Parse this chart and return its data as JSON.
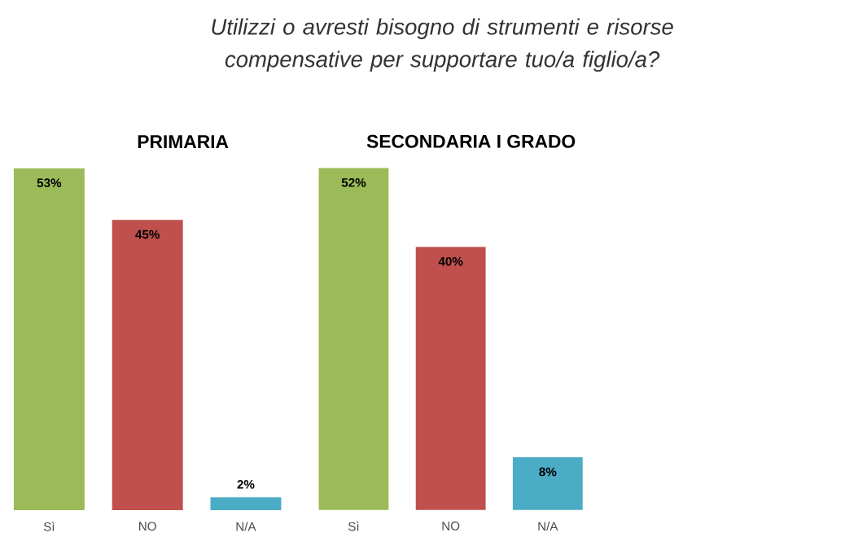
{
  "chart_data": [
    {
      "type": "bar",
      "title": "PRIMARIA",
      "annotations": [
        "*Utilizzi o avresti bisogno di strumenti e risorse compensative per supportare tuo/a figlio/a?*"
      ],
      "categories": [
        "Sì",
        "NO",
        "N/A"
      ],
      "values": [
        53,
        45,
        2
      ],
      "value_labels": [
        "53%",
        "45%",
        "2%"
      ],
      "colors": [
        "#9bbb59",
        "#c0504d",
        "#4bacc6"
      ],
      "tick_labels": "x"
    },
    {
      "type": "bar",
      "title": "SECONDARIA I GRADO",
      "categories": [
        "Sì",
        "NO",
        "N/A"
      ],
      "values": [
        52,
        40,
        8
      ],
      "value_labels": [
        "52%",
        "40%",
        "8%"
      ],
      "colors": [
        "#9bbb59",
        "#c0504d",
        "#4bacc6"
      ],
      "tick_labels": "x"
    }
  ]
}
